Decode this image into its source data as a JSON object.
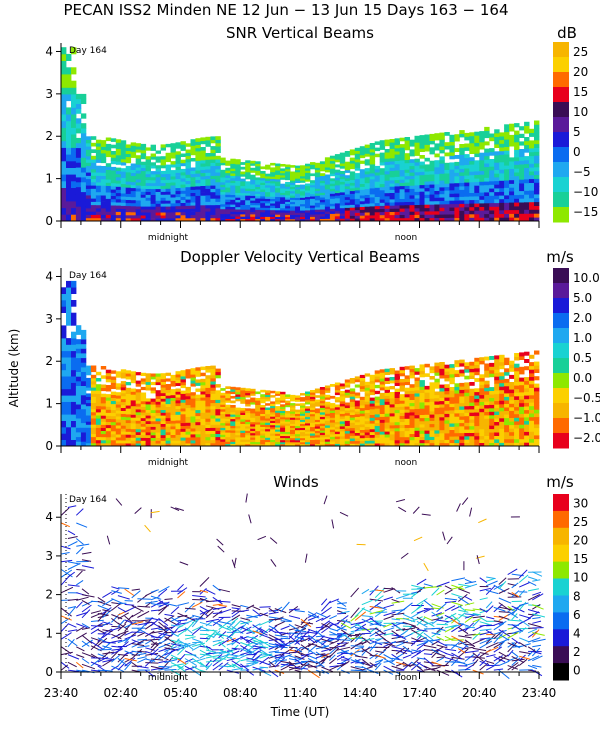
{
  "figure": {
    "suptitle": "PECAN ISS2 Minden NE  12 Jun − 13 Jun 15 Days 163 − 164",
    "xlabel": "Time (UT)",
    "ylabel": "Altitude (km)"
  },
  "chart_data": [
    {
      "type": "heatmap",
      "id": "snr",
      "title": "SNR Vertical Beams",
      "units": "dB",
      "day_label": "Day 164",
      "marks": {
        "midnight": "midnight",
        "noon": "noon"
      },
      "ylim": [
        0,
        4.2
      ],
      "yticks": [
        "0",
        "1",
        "2",
        "3",
        "4"
      ],
      "xlim_hours": [
        0,
        24
      ],
      "colorbar": {
        "labels": [
          "25",
          "20",
          "15",
          "10",
          "5",
          "0",
          "−5",
          "−10",
          "−15"
        ],
        "colors": [
          "#f7b500",
          "#fcd000",
          "#ff6a00",
          "#e8001c",
          "#3a0d55",
          "#5a1a9a",
          "#1a1ad8",
          "#0a6cf0",
          "#1fa8f0",
          "#19d2d2",
          "#18d098",
          "#8ee800"
        ]
      },
      "description_points": [
        {
          "hour": 0.5,
          "top_km": 4.1
        },
        {
          "hour": 6,
          "top_km": 1.9
        },
        {
          "hour": 12,
          "top_km": 1.3
        },
        {
          "hour": 18,
          "top_km": 2.0
        },
        {
          "hour": 23.5,
          "top_km": 2.5
        }
      ]
    },
    {
      "type": "heatmap",
      "id": "doppler",
      "title": "Doppler Velocity Vertical Beams",
      "units": "m/s",
      "day_label": "Day 164",
      "marks": {
        "midnight": "midnight",
        "noon": "noon"
      },
      "ylim": [
        0,
        4.2
      ],
      "yticks": [
        "0",
        "1",
        "2",
        "3",
        "4"
      ],
      "xlim_hours": [
        0,
        24
      ],
      "colorbar": {
        "labels": [
          "10.0",
          "5.0",
          "2.0",
          "1.0",
          "0.5",
          "0.0",
          "−0.5",
          "−1.0",
          "−2.0"
        ],
        "colors": [
          "#3a0d55",
          "#5a1a9a",
          "#1a1ad8",
          "#0a6cf0",
          "#1fa8f0",
          "#19d2d2",
          "#18d098",
          "#8ee800",
          "#fcd000",
          "#f7b500",
          "#ff6a00",
          "#e8001c"
        ]
      }
    },
    {
      "type": "wind-barbs",
      "id": "winds",
      "title": "Winds",
      "units": "m/s",
      "day_label": "Day 164",
      "marks": {
        "midnight": "midnight",
        "noon": "noon"
      },
      "ylim": [
        0,
        4.6
      ],
      "yticks": [
        "0",
        "1",
        "2",
        "3",
        "4"
      ],
      "xticks": [
        "23:40",
        "02:40",
        "05:40",
        "08:40",
        "11:40",
        "14:40",
        "17:40",
        "20:40",
        "23:40"
      ],
      "colorbar": {
        "labels": [
          "30",
          "25",
          "20",
          "15",
          "10",
          "8",
          "6",
          "4",
          "2",
          "0"
        ],
        "colors": [
          "#e8001c",
          "#ff6a00",
          "#f7b500",
          "#fcd000",
          "#8ee800",
          "#19d2d2",
          "#1fa8f0",
          "#0a6cf0",
          "#1a1ad8",
          "#3a0d55",
          "#000000"
        ]
      }
    }
  ]
}
